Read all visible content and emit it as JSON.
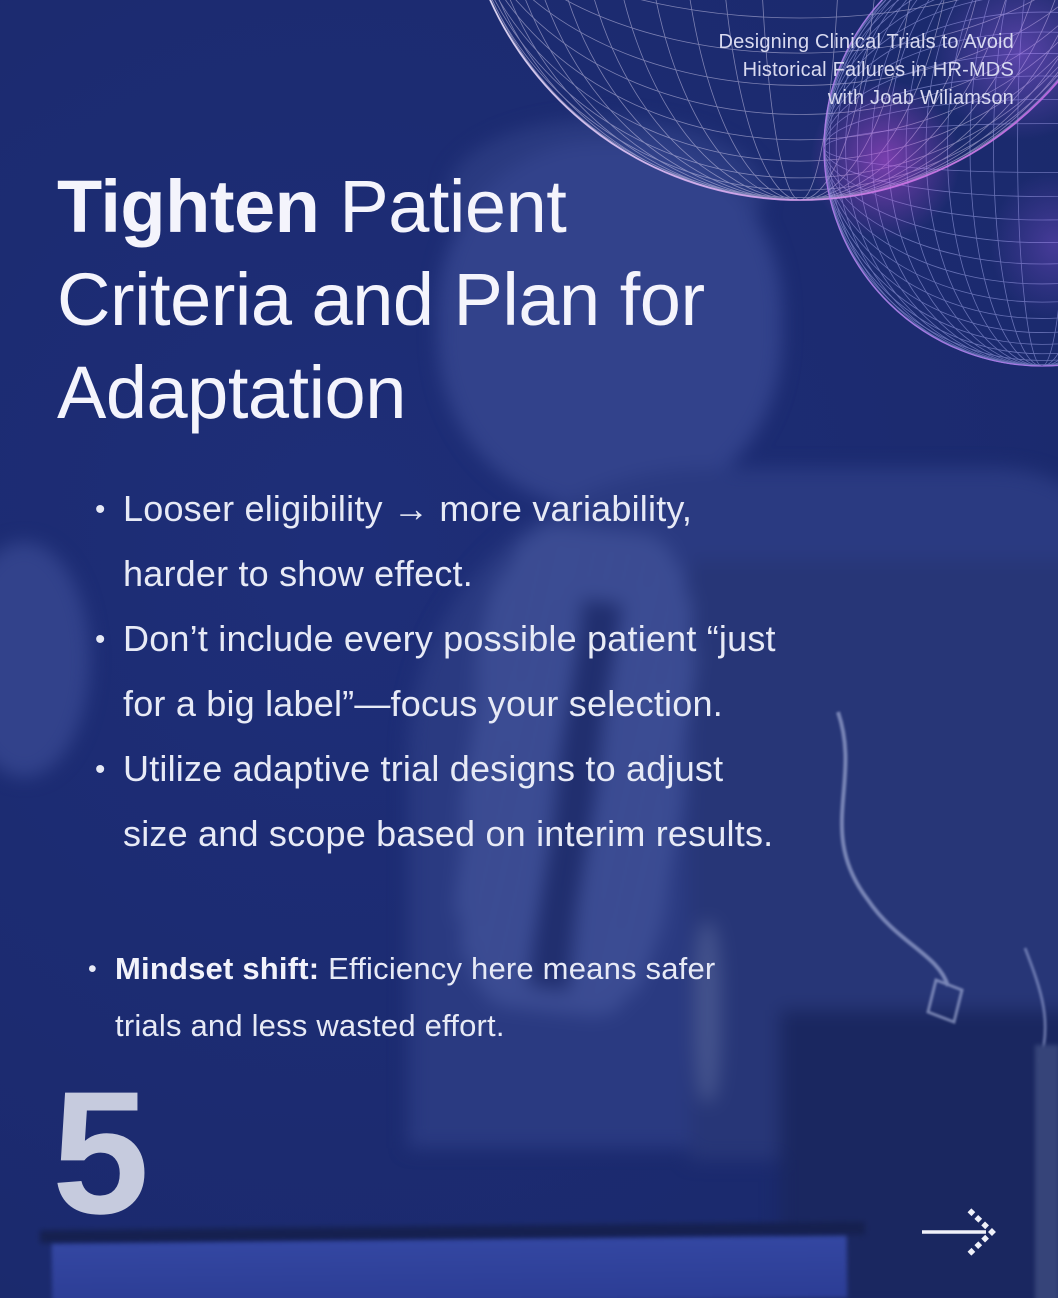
{
  "colors": {
    "background": "#1b2a6e",
    "title_text": "#f4f4fc",
    "body_text": "#e7eaf6",
    "header_text": "#d9daf0",
    "page_number_text": "#c6cbde",
    "mesh_white": "#ddd6f4",
    "mesh_lavender": "#9aa0e4",
    "mesh_rim_magenta": "#c44fe0",
    "photo_tint": "#32428b",
    "screen_blue": "#3245a0"
  },
  "header": {
    "lines": [
      "Designing Clinical Trials to Avoid",
      "Historical Failures in HR-MDS",
      "with Joab Wiliamson"
    ]
  },
  "title": {
    "emphasis": "Tighten",
    "line1_rest": " Patient",
    "line2": "Criteria and Plan for",
    "line3": "Adaptation"
  },
  "bullets": [
    {
      "lines": [
        "Looser eligibility → more variability,",
        "harder to show effect."
      ]
    },
    {
      "lines": [
        "Don’t include every possible patient “just",
        "for a big label”—focus your selection."
      ]
    },
    {
      "lines": [
        "Utilize adaptive trial designs to adjust",
        "size and scope based on interim results."
      ]
    }
  ],
  "takeaway": {
    "lead": "Mindset shift:",
    "line1_rest": " Efficiency here means safer",
    "line2": "trials and less wasted effort."
  },
  "footer": {
    "page_number": "5"
  },
  "icons": {
    "next_arrow": "→"
  }
}
